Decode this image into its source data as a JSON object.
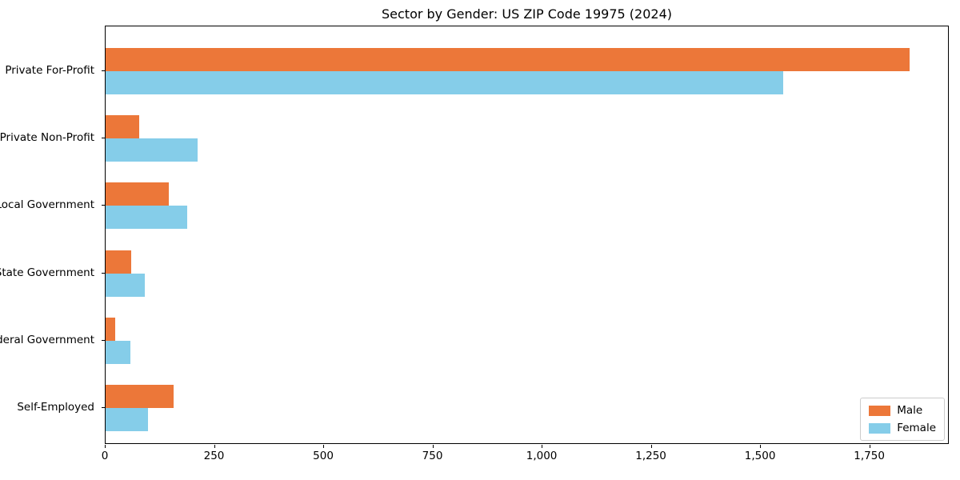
{
  "chart_data": {
    "type": "bar",
    "orientation": "horizontal",
    "title": "Sector by Gender: US ZIP Code 19975 (2024)",
    "categories": [
      "Private For-Profit",
      "Private Non-Profit",
      "Local Government",
      "State Government",
      "Federal Government",
      "Self-Employed"
    ],
    "series": [
      {
        "name": "Male",
        "color": "#EC7739",
        "values": [
          1840,
          77,
          145,
          59,
          22,
          156
        ]
      },
      {
        "name": "Female",
        "color": "#85CDE9",
        "values": [
          1552,
          211,
          187,
          90,
          57,
          97
        ]
      }
    ],
    "xlabel": "",
    "ylabel": "",
    "xlim": [
      0,
      1932
    ],
    "xticks": [
      0,
      250,
      500,
      750,
      1000,
      1250,
      1500,
      1750
    ],
    "xtick_labels": [
      "0",
      "250",
      "500",
      "750",
      "1,000",
      "1,250",
      "1,500",
      "1,750"
    ],
    "grid": false,
    "legend_position": "lower right",
    "background_color": "#ffffff",
    "spine_color": "#000000"
  }
}
